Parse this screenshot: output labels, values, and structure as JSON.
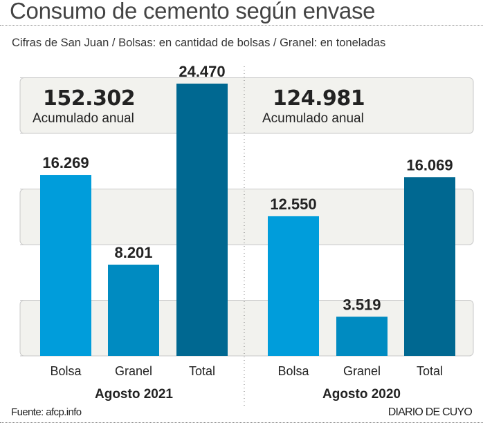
{
  "header": {
    "title": "Consumo de cemento según envase",
    "subtitle": "Cifras de San Juan / Bolsas: en cantidad de bolsas / Granel: en toneladas"
  },
  "footer": {
    "source": "Fuente: afcp.info",
    "brand": "DIARIO DE CUYO"
  },
  "colors": {
    "bolsa": "#009ddb",
    "granel": "#008bc1",
    "total": "#006891",
    "band": "#f2f2ee",
    "gridline": "#c8c8c8"
  },
  "chart_data": {
    "type": "bar",
    "title": "Consumo de cemento según envase",
    "subtitle": "Cifras de San Juan / Bolsas: en cantidad de bolsas / Granel: en toneladas",
    "categories": [
      "Bolsa",
      "Granel",
      "Total"
    ],
    "groups": [
      {
        "name": "Agosto 2021",
        "values": [
          16269,
          8201,
          24470
        ],
        "labels": [
          "16.269",
          "8.201",
          "24.470"
        ],
        "accumulated": "152.302",
        "accumulated_label": "Acumulado anual"
      },
      {
        "name": "Agosto 2020",
        "values": [
          12550,
          3519,
          16069
        ],
        "labels": [
          "12.550",
          "3.519",
          "16.069"
        ],
        "accumulated": "124.981",
        "accumulated_label": "Acumulado anual"
      }
    ],
    "ylim": [
      0,
      25000
    ],
    "grid_step": 5000,
    "grid": true,
    "xlabel": "",
    "ylabel": ""
  }
}
